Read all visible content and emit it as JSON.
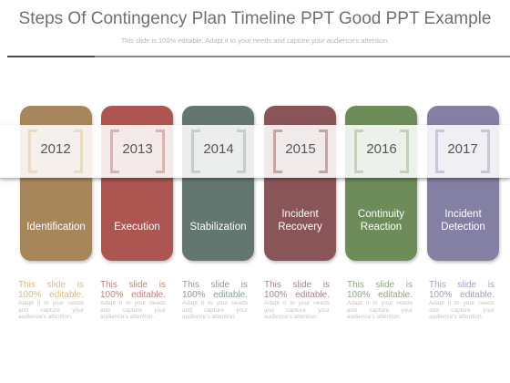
{
  "title": "Steps Of Contingency Plan Timeline PPT Good PPT Example",
  "subtitle": "This slide is 100% editable. Adapt it to your needs and capture your audience's attention.",
  "steps": [
    {
      "year": "2012",
      "label": "Identification",
      "desc_lead": "This slide is 100% editable.",
      "desc_rest": "Adapt it to your needs and capture your audience's attention.",
      "color": "#a8865c",
      "bracket_color": "#e9dcc1",
      "desc_color": "#d8b98b"
    },
    {
      "year": "2013",
      "label": "Execution",
      "desc_lead": "This slide is 100% editable.",
      "desc_rest": "Adapt it to your needs and capture your audience's attention.",
      "color": "#ad5550",
      "bracket_color": "#dcb1ad",
      "desc_color": "#c87f79"
    },
    {
      "year": "2014",
      "label": "Stabilization",
      "desc_lead": "This slide is 100% editable.",
      "desc_rest": "Adapt it to your needs and capture your audience's attention.",
      "color": "#647670",
      "bracket_color": "#c5ceca",
      "desc_color": "#8e9c97"
    },
    {
      "year": "2015",
      "label": "Incident Recovery",
      "desc_lead": "This slide is 100% editable.",
      "desc_rest": "Adapt it to your needs and capture your audience's attention.",
      "color": "#8a5558",
      "bracket_color": "#c6a5a6",
      "desc_color": "#a98688"
    },
    {
      "year": "2016",
      "label": "Continuity Reaction",
      "desc_lead": "This slide is 100% editable.",
      "desc_rest": "Adapt it to your needs and capture your audience's attention.",
      "color": "#6d8c59",
      "bracket_color": "#c3d1b7",
      "desc_color": "#90a87f"
    },
    {
      "year": "2017",
      "label": "Incident Detection",
      "desc_lead": "This slide is 100% editable.",
      "desc_rest": "Adapt it to your needs and capture your audience's attention.",
      "color": "#8380a4",
      "bracket_color": "#c9c7d9",
      "desc_color": "#a3a0bd"
    }
  ]
}
